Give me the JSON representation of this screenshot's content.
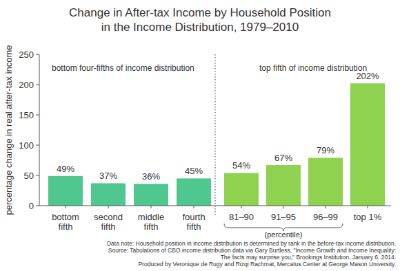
{
  "chart_data": {
    "type": "bar",
    "title": "Change in After-tax Income by Household Position in the Income Distribution, 1979–2010",
    "y_label": "percentage change in real after-tax income",
    "categories": [
      "bottom fifth",
      "second fifth",
      "middle fifth",
      "fourth fifth",
      "81–90",
      "91–95",
      "96–99",
      "top 1%"
    ],
    "values": [
      49,
      37,
      36,
      45,
      54,
      67,
      79,
      202
    ],
    "value_labels": [
      "49%",
      "37%",
      "36%",
      "45%",
      "54%",
      "67%",
      "79%",
      "202%"
    ],
    "colors": [
      "#4fc78e",
      "#4fc78e",
      "#4fc78e",
      "#4fc78e",
      "#8ed24f",
      "#8ed24f",
      "#8ed24f",
      "#8ed24f"
    ],
    "ylim": [
      0,
      250
    ],
    "yticks": [
      0,
      50,
      100,
      150,
      200,
      250
    ],
    "grid": false,
    "data_labels": true,
    "annotations": [
      "bottom four-fifths of income distribution",
      "top fifth of income distribution",
      "(percentile)",
      "Data note: Household position in income distribution is determined by rank in the before-tax income distribution.",
      "Source: Tabulations of CBO income distribution data via Gary Burtless, \"Income Growth and Income Inequality:",
      "The facts may surprise you,\" Brookings Institution, January 6, 2014.",
      "Produced by Veronique de Rugy and Rizqi Rachmat, Mercatus Center at George Mason University."
    ]
  }
}
